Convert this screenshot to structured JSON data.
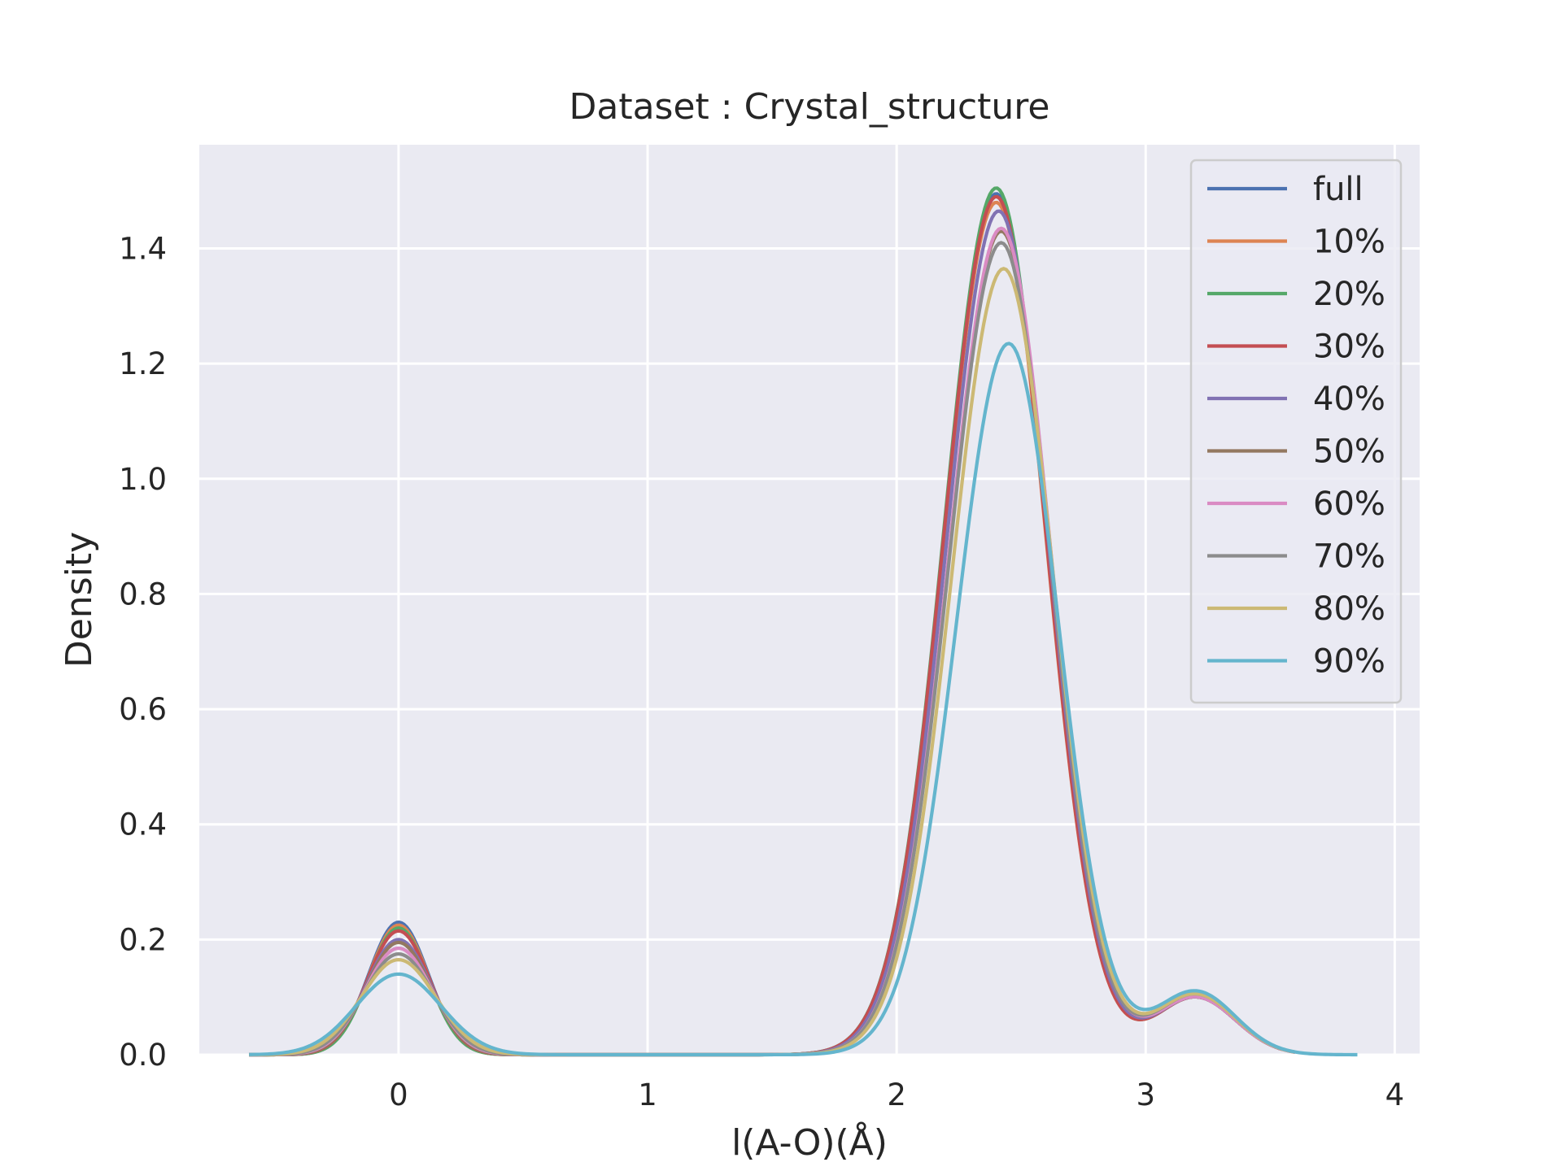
{
  "chart_data": {
    "type": "line",
    "title": "Dataset : Crystal_structure",
    "xlabel": "l(A-O)(Å)",
    "ylabel": "Density",
    "xlim": [
      -0.8,
      4.1
    ],
    "ylim": [
      0,
      1.58
    ],
    "xticks": [
      0,
      1,
      2,
      3,
      4
    ],
    "yticks": [
      0.0,
      0.2,
      0.4,
      0.6,
      0.8,
      1.0,
      1.2,
      1.4
    ],
    "xtick_labels": [
      "0",
      "1",
      "2",
      "3",
      "4"
    ],
    "ytick_labels": [
      "0.0",
      "0.2",
      "0.4",
      "0.6",
      "0.8",
      "1.0",
      "1.2",
      "1.4"
    ],
    "grid": true,
    "legend_position": "top-right",
    "background": "#eaeaf2",
    "series": [
      {
        "name": "full",
        "color": "#4c72b0",
        "x_range": [
          -0.6,
          3.55
        ],
        "peak1": {
          "x": 0.0,
          "y": 0.23,
          "sigma": 0.12
        },
        "peak2": {
          "x": 2.4,
          "y": 1.495
        },
        "shoulder": {
          "x": 3.2,
          "y": 0.1
        }
      },
      {
        "name": "10%",
        "color": "#dd8452",
        "x_range": [
          -0.6,
          3.55
        ],
        "peak1": {
          "x": 0.0,
          "y": 0.225,
          "sigma": 0.12
        },
        "peak2": {
          "x": 2.4,
          "y": 1.48
        },
        "shoulder": {
          "x": 3.2,
          "y": 0.1
        }
      },
      {
        "name": "20%",
        "color": "#55a868",
        "x_range": [
          -0.6,
          3.55
        ],
        "peak1": {
          "x": 0.0,
          "y": 0.22,
          "sigma": 0.12
        },
        "peak2": {
          "x": 2.4,
          "y": 1.505
        },
        "shoulder": {
          "x": 3.2,
          "y": 0.1
        }
      },
      {
        "name": "30%",
        "color": "#c44e52",
        "x_range": [
          -0.6,
          3.55
        ],
        "peak1": {
          "x": 0.0,
          "y": 0.215,
          "sigma": 0.125
        },
        "peak2": {
          "x": 2.4,
          "y": 1.49
        },
        "shoulder": {
          "x": 3.2,
          "y": 0.1
        }
      },
      {
        "name": "40%",
        "color": "#8172b3",
        "x_range": [
          -0.6,
          3.55
        ],
        "peak1": {
          "x": 0.0,
          "y": 0.2,
          "sigma": 0.13
        },
        "peak2": {
          "x": 2.41,
          "y": 1.465
        },
        "shoulder": {
          "x": 3.2,
          "y": 0.1
        }
      },
      {
        "name": "50%",
        "color": "#937860",
        "x_range": [
          -0.6,
          3.6
        ],
        "peak1": {
          "x": 0.0,
          "y": 0.195,
          "sigma": 0.13
        },
        "peak2": {
          "x": 2.42,
          "y": 1.43
        },
        "shoulder": {
          "x": 3.2,
          "y": 0.1
        }
      },
      {
        "name": "60%",
        "color": "#da8bc3",
        "x_range": [
          -0.6,
          3.6
        ],
        "peak1": {
          "x": 0.0,
          "y": 0.185,
          "sigma": 0.135
        },
        "peak2": {
          "x": 2.42,
          "y": 1.435
        },
        "shoulder": {
          "x": 3.2,
          "y": 0.1
        }
      },
      {
        "name": "70%",
        "color": "#8c8c8c",
        "x_range": [
          -0.6,
          3.6
        ],
        "peak1": {
          "x": 0.0,
          "y": 0.175,
          "sigma": 0.14
        },
        "peak2": {
          "x": 2.42,
          "y": 1.41
        },
        "shoulder": {
          "x": 3.2,
          "y": 0.105
        }
      },
      {
        "name": "80%",
        "color": "#ccb974",
        "x_range": [
          -0.6,
          3.6
        ],
        "peak1": {
          "x": 0.0,
          "y": 0.165,
          "sigma": 0.15
        },
        "peak2": {
          "x": 2.43,
          "y": 1.365
        },
        "shoulder": {
          "x": 3.2,
          "y": 0.105
        }
      },
      {
        "name": "90%",
        "color": "#64b5cd",
        "x_range": [
          -0.6,
          3.85
        ],
        "peak1": {
          "x": 0.0,
          "y": 0.14,
          "sigma": 0.17
        },
        "peak2": {
          "x": 2.45,
          "y": 1.235
        },
        "shoulder": {
          "x": 3.2,
          "y": 0.11
        }
      }
    ]
  }
}
